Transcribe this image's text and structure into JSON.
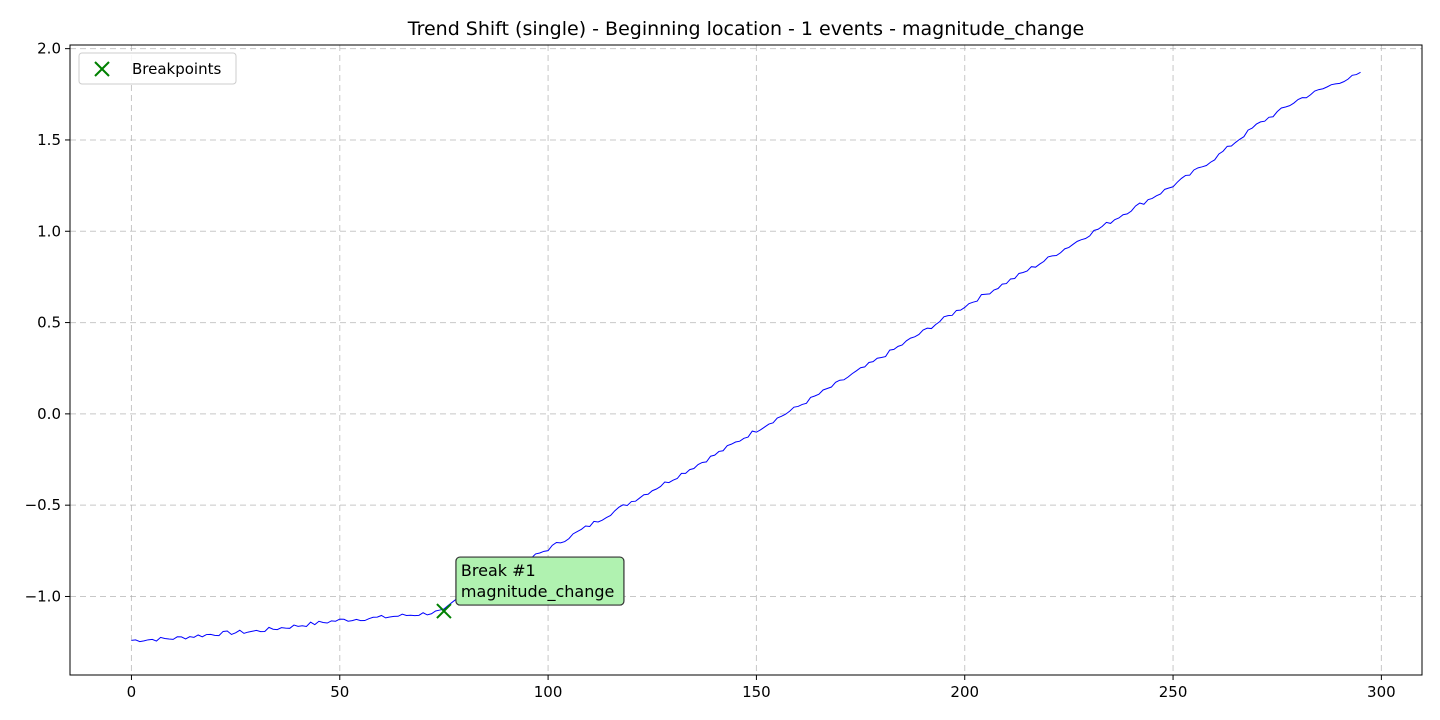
{
  "chart_data": {
    "type": "line",
    "title": "Trend Shift (single) - Beginning location - 1 events - magnitude_change",
    "xlabel": "",
    "ylabel": "",
    "xlim": [
      -14.75,
      309.75
    ],
    "ylim": [
      -1.43,
      2.02
    ],
    "grid": true,
    "legend_position": "top-left",
    "x_ticks": [
      0,
      50,
      100,
      150,
      200,
      250,
      300
    ],
    "x_tick_labels": [
      "0",
      "50",
      "100",
      "150",
      "200",
      "250",
      "300"
    ],
    "y_ticks": [
      -1.0,
      -0.5,
      0.0,
      0.5,
      1.0,
      1.5,
      2.0
    ],
    "y_tick_labels": [
      "−1.0",
      "−0.5",
      "0.0",
      "0.5",
      "1.0",
      "1.5",
      "2.0"
    ],
    "series": [
      {
        "name": "",
        "color": "#0000ff",
        "anchors": [
          [
            0,
            -1.24
          ],
          [
            10,
            -1.23
          ],
          [
            20,
            -1.205
          ],
          [
            30,
            -1.19
          ],
          [
            40,
            -1.16
          ],
          [
            50,
            -1.13
          ],
          [
            60,
            -1.115
          ],
          [
            70,
            -1.095
          ],
          [
            75,
            -1.08
          ],
          [
            80,
            -0.98
          ],
          [
            90,
            -0.86
          ],
          [
            100,
            -0.74
          ],
          [
            110,
            -0.61
          ],
          [
            120,
            -0.48
          ],
          [
            130,
            -0.355
          ],
          [
            140,
            -0.225
          ],
          [
            150,
            -0.09
          ],
          [
            160,
            0.04
          ],
          [
            170,
            0.175
          ],
          [
            180,
            0.31
          ],
          [
            190,
            0.45
          ],
          [
            200,
            0.59
          ],
          [
            210,
            0.72
          ],
          [
            220,
            0.85
          ],
          [
            230,
            0.985
          ],
          [
            240,
            1.12
          ],
          [
            250,
            1.25
          ],
          [
            260,
            1.4
          ],
          [
            270,
            1.58
          ],
          [
            280,
            1.72
          ],
          [
            290,
            1.82
          ],
          [
            295,
            1.86
          ]
        ],
        "n_points": 296,
        "noise_amplitude": 0.012
      }
    ],
    "breakpoints": {
      "legend_label": "Breakpoints",
      "color": "#008000",
      "points": [
        {
          "x": 75,
          "y": -1.08,
          "label_line1": "Break #1",
          "label_line2": "magnitude_change"
        }
      ]
    },
    "annotation_box": {
      "fill": "#b0f2b0",
      "edge": "#333333"
    }
  }
}
